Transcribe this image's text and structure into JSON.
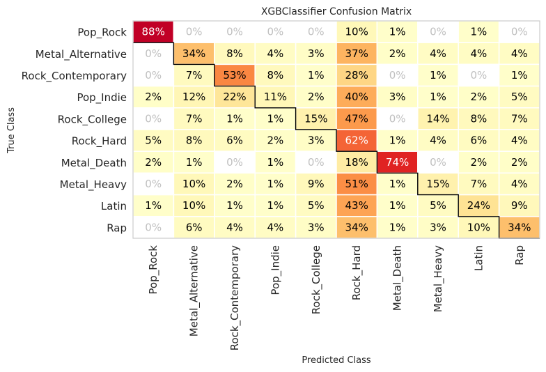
{
  "chart_data": {
    "type": "heatmap",
    "title": "XGBClassifier Confusion Matrix",
    "xlabel": "Predicted Class",
    "ylabel": "True Class",
    "categories": [
      "Pop_Rock",
      "Metal_Alternative",
      "Rock_Contemporary",
      "Pop_Indie",
      "Rock_College",
      "Rock_Hard",
      "Metal_Death",
      "Metal_Heavy",
      "Latin",
      "Rap"
    ],
    "value_format": "percent",
    "matrix": [
      [
        88,
        0,
        0,
        0,
        0,
        10,
        1,
        0,
        1,
        0
      ],
      [
        0,
        34,
        8,
        4,
        3,
        37,
        2,
        4,
        4,
        4
      ],
      [
        0,
        7,
        53,
        8,
        1,
        28,
        0,
        1,
        0,
        1
      ],
      [
        2,
        12,
        22,
        11,
        2,
        40,
        3,
        1,
        2,
        5
      ],
      [
        0,
        7,
        1,
        1,
        15,
        47,
        0,
        14,
        8,
        7
      ],
      [
        5,
        8,
        6,
        2,
        3,
        62,
        1,
        4,
        6,
        4
      ],
      [
        2,
        1,
        0,
        1,
        0,
        18,
        74,
        0,
        2,
        2
      ],
      [
        0,
        10,
        2,
        1,
        9,
        51,
        1,
        15,
        7,
        4
      ],
      [
        1,
        10,
        1,
        1,
        5,
        43,
        1,
        5,
        24,
        9
      ],
      [
        0,
        6,
        4,
        4,
        3,
        34,
        1,
        3,
        10,
        34
      ]
    ],
    "colormap": "YlOrRd",
    "zero_cell_color": "#ffffff",
    "zero_text_color": "#c0c0c0",
    "diagonal_outline": true,
    "grid": false
  }
}
